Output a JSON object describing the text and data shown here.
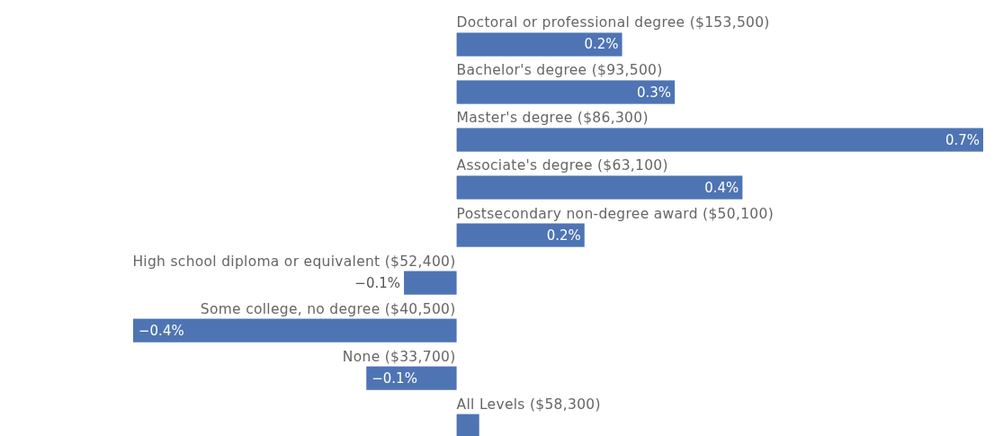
{
  "chart_data": {
    "type": "bar",
    "orientation": "horizontal",
    "categories": [
      "Doctoral or professional degree ($153,500)",
      "Bachelor's degree ($93,500)",
      "Master's degree ($86,300)",
      "Associate's degree ($63,100)",
      "Postsecondary non-degree award ($50,100)",
      "High school diploma or equivalent ($52,400)",
      "Some college, no degree ($40,500)",
      "None ($33,700)",
      "All Levels ($58,300)"
    ],
    "values": [
      0.22,
      0.29,
      0.7,
      0.38,
      0.17,
      -0.07,
      -0.43,
      -0.12,
      0.03
    ],
    "value_labels": [
      "0.2%",
      "0.3%",
      "0.7%",
      "0.4%",
      "0.2%",
      "−0.1%",
      "−0.4%",
      "−0.1%",
      null
    ],
    "color": "#4e74b4"
  }
}
